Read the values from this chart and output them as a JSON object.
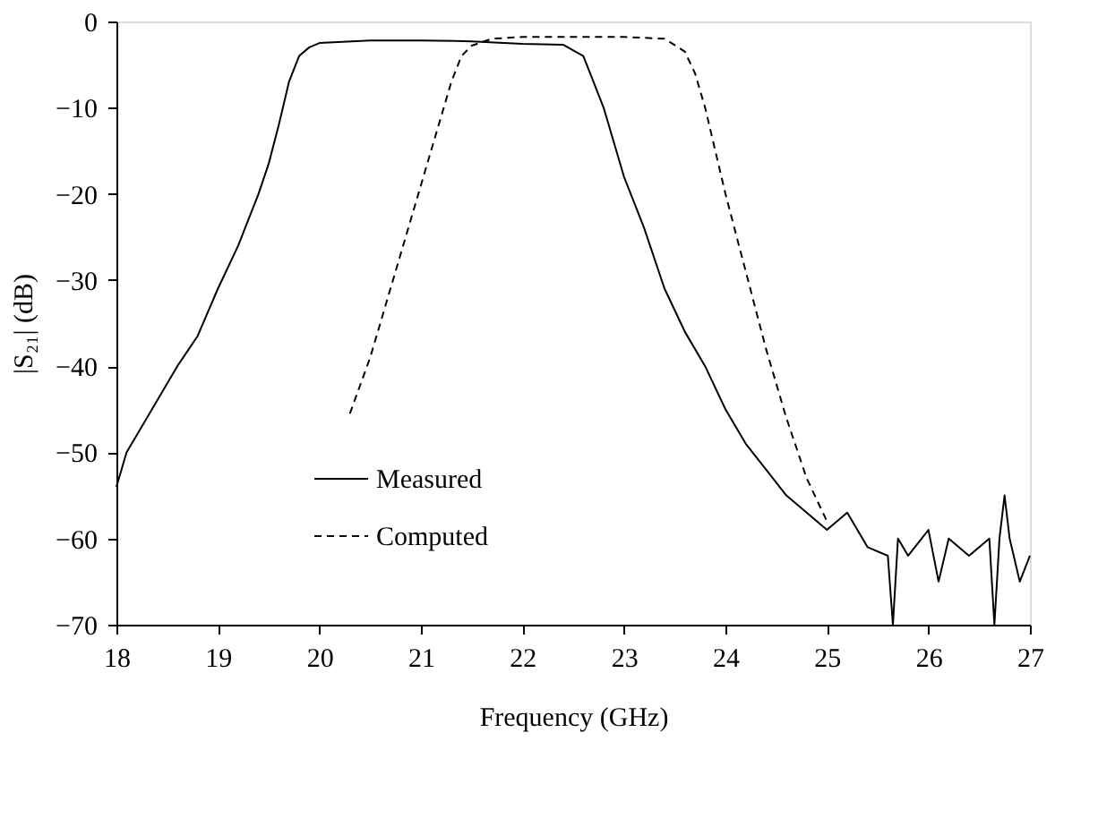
{
  "chart_data": {
    "type": "line",
    "xlabel": "Frequency (GHz)",
    "ylabel": "|S₂₁| (dB)",
    "xlim": [
      18,
      27
    ],
    "xticks": [
      18,
      19,
      20,
      21,
      22,
      23,
      24,
      25,
      26,
      27
    ],
    "ylim": [
      -70,
      0
    ],
    "yticks": [
      -70,
      -60,
      -50,
      -40,
      -30,
      -20,
      -10,
      0
    ],
    "grid": false,
    "legend": "bottom",
    "marker": "none",
    "series": [
      {
        "name": "Measured",
        "color": "#000000",
        "line_style": "solid",
        "x": [
          18.0,
          18.1,
          18.2,
          18.4,
          18.6,
          18.8,
          19.0,
          19.2,
          19.4,
          19.5,
          19.6,
          19.7,
          19.8,
          19.9,
          20.0,
          20.5,
          21.0,
          21.5,
          22.0,
          22.4,
          22.6,
          22.7,
          22.8,
          22.9,
          23.0,
          23.1,
          23.2,
          23.4,
          23.6,
          23.8,
          24.0,
          24.2,
          24.4,
          24.6,
          24.8,
          25.0,
          25.2,
          25.4,
          25.6,
          25.65,
          25.7,
          25.8,
          26.0,
          26.1,
          26.2,
          26.4,
          26.6,
          26.65,
          26.7,
          26.75,
          26.8,
          26.9,
          27.0
        ],
        "values": [
          -54,
          -50,
          -48,
          -44,
          -40,
          -36.5,
          -31,
          -26,
          -20,
          -16.5,
          -12,
          -7,
          -4,
          -3,
          -2.5,
          -2.2,
          -2.2,
          -2.3,
          -2.6,
          -2.7,
          -4,
          -7,
          -10,
          -14,
          -18,
          -21,
          -24,
          -31,
          -36,
          -40,
          -45,
          -49,
          -52,
          -55,
          -57,
          -59,
          -57,
          -61,
          -62,
          -70,
          -60,
          -62,
          -59,
          -65,
          -60,
          -62,
          -60,
          -70,
          -60,
          -55,
          -60,
          -65,
          -62
        ]
      },
      {
        "name": "Computed",
        "color": "#000000",
        "line_style": "dashed",
        "x": [
          20.3,
          20.5,
          20.7,
          20.9,
          21.1,
          21.3,
          21.4,
          21.5,
          21.7,
          22.0,
          23.0,
          23.4,
          23.6,
          23.7,
          23.8,
          23.9,
          24.0,
          24.2,
          24.4,
          24.6,
          24.8,
          25.0
        ],
        "values": [
          -45.5,
          -39,
          -31,
          -23,
          -15,
          -7,
          -4,
          -2.8,
          -2,
          -1.8,
          -1.8,
          -2,
          -3.5,
          -6,
          -10,
          -15,
          -20,
          -29,
          -38,
          -46,
          -53,
          -58
        ]
      }
    ]
  }
}
